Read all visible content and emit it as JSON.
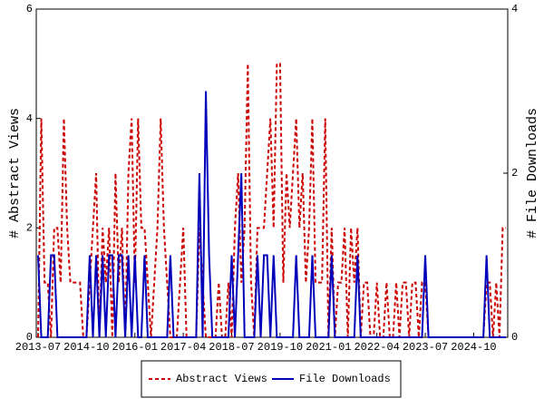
{
  "chart_data": {
    "type": "line",
    "y_label": "# Abstract Views",
    "y2_label": "# File Downloads",
    "x": [
      "2013-07",
      "2013-08",
      "2013-09",
      "2013-10",
      "2013-11",
      "2013-12",
      "2014-01",
      "2014-02",
      "2014-03",
      "2014-04",
      "2014-05",
      "2014-06",
      "2014-07",
      "2014-08",
      "2014-09",
      "2014-10",
      "2014-11",
      "2014-12",
      "2015-01",
      "2015-02",
      "2015-03",
      "2015-04",
      "2015-05",
      "2015-06",
      "2015-07",
      "2015-08",
      "2015-09",
      "2015-10",
      "2015-11",
      "2015-12",
      "2016-01",
      "2016-02",
      "2016-03",
      "2016-04",
      "2016-05",
      "2016-06",
      "2016-07",
      "2016-08",
      "2016-09",
      "2016-10",
      "2016-11",
      "2016-12",
      "2017-01",
      "2017-02",
      "2017-03",
      "2017-04",
      "2017-05",
      "2017-06",
      "2017-07",
      "2017-08",
      "2017-09",
      "2017-10",
      "2017-11",
      "2017-12",
      "2018-01",
      "2018-02",
      "2018-03",
      "2018-04",
      "2018-05",
      "2018-06",
      "2018-07",
      "2018-08",
      "2018-09",
      "2018-10",
      "2018-11",
      "2018-12",
      "2019-01",
      "2019-02",
      "2019-03",
      "2019-04",
      "2019-05",
      "2019-06",
      "2019-07",
      "2019-08",
      "2019-09",
      "2019-10",
      "2019-11",
      "2019-12",
      "2020-01",
      "2020-02",
      "2020-03",
      "2020-04",
      "2020-05",
      "2020-06",
      "2020-07",
      "2020-08",
      "2020-09",
      "2020-10",
      "2020-11",
      "2020-12",
      "2021-01",
      "2021-02",
      "2021-03",
      "2021-04",
      "2021-05",
      "2021-06",
      "2021-07",
      "2021-08",
      "2021-09",
      "2021-10",
      "2021-11",
      "2021-12",
      "2022-01",
      "2022-02",
      "2022-03",
      "2022-04",
      "2022-05",
      "2022-06",
      "2022-07",
      "2022-08",
      "2022-09",
      "2022-10",
      "2022-11",
      "2022-12",
      "2023-01",
      "2023-02",
      "2023-03",
      "2023-04",
      "2023-05",
      "2023-06",
      "2023-07",
      "2023-08",
      "2023-09",
      "2023-10",
      "2023-11",
      "2023-12",
      "2024-01",
      "2024-02",
      "2024-03",
      "2024-04",
      "2024-05",
      "2024-06",
      "2024-07",
      "2024-08",
      "2024-09",
      "2024-10",
      "2024-11",
      "2024-12",
      "2025-01",
      "2025-02",
      "2025-03",
      "2025-04",
      "2025-05",
      "2025-06",
      "2025-07",
      "2025-08"
    ],
    "xticks": [
      "2013-07",
      "2014-10",
      "2016-01",
      "2017-04",
      "2018-07",
      "2019-10",
      "2021-01",
      "2022-04",
      "2023-07",
      "2024-10"
    ],
    "ylim": [
      0,
      6
    ],
    "yticks": [
      0,
      2,
      4,
      6
    ],
    "y2lim": [
      0,
      4
    ],
    "y2ticks": [
      0,
      2,
      4
    ],
    "legend": "bottom",
    "series": [
      {
        "name": "Abstract Views",
        "color": "#cc0000",
        "dash": true,
        "values": [
          0,
          4,
          1,
          1,
          0,
          2,
          2,
          1,
          4,
          2,
          1,
          1,
          1,
          1,
          0,
          0,
          1,
          2,
          3,
          0,
          2,
          1,
          2,
          0,
          3,
          1,
          2,
          0,
          3,
          4,
          1,
          4,
          2,
          2,
          1,
          0,
          1,
          2,
          4,
          2,
          1,
          0,
          0,
          0,
          1,
          2,
          0,
          0,
          0,
          0,
          2,
          1,
          0,
          0,
          0,
          0,
          1,
          0,
          0,
          1,
          0,
          2,
          3,
          1,
          2,
          5,
          1,
          0,
          2,
          2,
          2,
          3,
          4,
          2,
          5,
          5,
          1,
          3,
          2,
          3,
          4,
          2,
          3,
          1,
          2,
          4,
          1,
          1,
          1,
          4,
          0,
          2,
          0,
          1,
          1,
          2,
          0,
          2,
          1,
          2,
          0,
          1,
          1,
          0,
          0,
          1,
          0,
          0,
          1,
          0,
          0,
          1,
          0,
          1,
          1,
          0,
          1,
          1,
          0,
          1,
          1,
          0,
          0,
          0,
          0,
          0,
          0,
          0,
          0,
          0,
          0,
          0,
          0,
          0,
          0,
          0,
          0,
          0,
          0,
          1,
          1,
          0,
          1,
          0,
          2,
          2
        ]
      },
      {
        "name": "File Downloads",
        "color": "#0000bb",
        "axis": "y2",
        "dash": false,
        "values": [
          1,
          0,
          0,
          0,
          1,
          1,
          0,
          0,
          0,
          0,
          0,
          0,
          0,
          0,
          0,
          0,
          1,
          0,
          1,
          0,
          1,
          0,
          1,
          1,
          0,
          1,
          1,
          0,
          1,
          0,
          1,
          0,
          0,
          1,
          0,
          0,
          0,
          0,
          0,
          0,
          0,
          1,
          0,
          0,
          0,
          0,
          0,
          0,
          0,
          0,
          2,
          0,
          3,
          1,
          0,
          0,
          0,
          0,
          0,
          0,
          1,
          0,
          1,
          2,
          0,
          0,
          0,
          0,
          1,
          0,
          1,
          1,
          0,
          1,
          0,
          0,
          0,
          0,
          0,
          0,
          1,
          0,
          0,
          0,
          0,
          1,
          0,
          0,
          0,
          0,
          0,
          1,
          0,
          0,
          0,
          0,
          0,
          0,
          0,
          1,
          0,
          0,
          0,
          0,
          0,
          0,
          0,
          0,
          0,
          0,
          0,
          0,
          0,
          0,
          0,
          0,
          0,
          0,
          0,
          0,
          1,
          0,
          0,
          0,
          0,
          0,
          0,
          0,
          0,
          0,
          0,
          0,
          0,
          0,
          0,
          0,
          0,
          0,
          0,
          1,
          0,
          0,
          0,
          0,
          0,
          0
        ]
      }
    ]
  }
}
